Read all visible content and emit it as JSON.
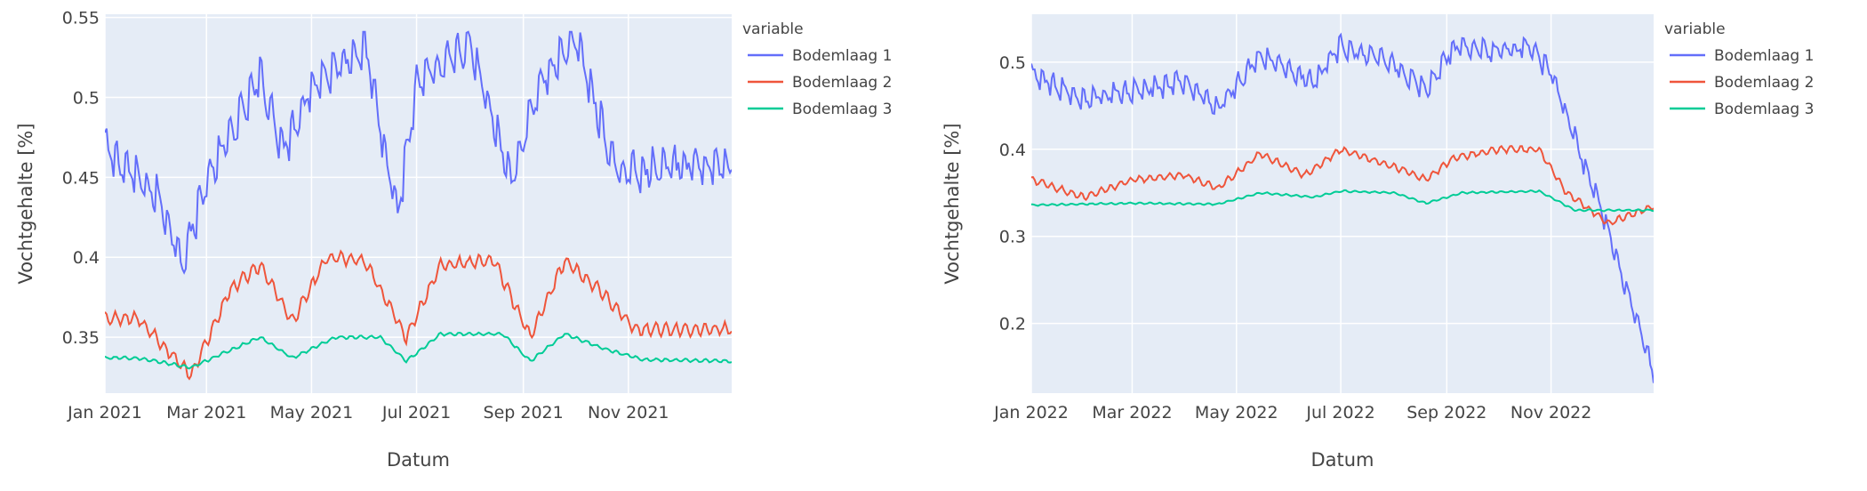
{
  "chart_data": [
    {
      "type": "line",
      "xlabel": "Datum",
      "ylabel": "Vochtgehalte [%]",
      "x_range": [
        "2021-01-01",
        "2021-12-31"
      ],
      "ylim": [
        0.315,
        0.552
      ],
      "x_ticks": [
        "Jan 2021",
        "Mar 2021",
        "May 2021",
        "Jul 2021",
        "Sep 2021",
        "Nov 2021"
      ],
      "y_ticks": [
        "0.35",
        "0.4",
        "0.45",
        "0.5",
        "0.55"
      ],
      "legend_title": "variable",
      "legend_position": "top-right",
      "series": [
        {
          "name": "Bodemlaag 1",
          "color": "#636efa",
          "x": [
            "2021-01-01",
            "2021-02-01",
            "2021-02-15",
            "2021-03-01",
            "2021-04-01",
            "2021-04-15",
            "2021-05-01",
            "2021-06-01",
            "2021-06-20",
            "2021-07-01",
            "2021-08-01",
            "2021-08-25",
            "2021-09-10",
            "2021-10-01",
            "2021-10-25",
            "2021-12-01",
            "2021-12-31"
          ],
          "y": [
            0.46,
            0.43,
            0.39,
            0.44,
            0.505,
            0.46,
            0.5,
            0.525,
            0.42,
            0.5,
            0.525,
            0.44,
            0.5,
            0.53,
            0.445,
            0.45,
            0.45
          ]
        },
        {
          "name": "Bodemlaag 2",
          "color": "#ef553b",
          "x": [
            "2021-01-01",
            "2021-01-20",
            "2021-02-20",
            "2021-03-15",
            "2021-04-01",
            "2021-04-20",
            "2021-05-10",
            "2021-06-01",
            "2021-06-25",
            "2021-07-15",
            "2021-08-15",
            "2021-09-05",
            "2021-09-25",
            "2021-10-15",
            "2021-11-05",
            "2021-12-31"
          ],
          "y": [
            0.362,
            0.362,
            0.326,
            0.38,
            0.395,
            0.36,
            0.4,
            0.398,
            0.35,
            0.395,
            0.398,
            0.35,
            0.398,
            0.38,
            0.355,
            0.355
          ]
        },
        {
          "name": "Bodemlaag 3",
          "color": "#00cc96",
          "x": [
            "2021-01-01",
            "2021-01-20",
            "2021-02-20",
            "2021-04-01",
            "2021-04-20",
            "2021-05-15",
            "2021-06-10",
            "2021-06-25",
            "2021-07-15",
            "2021-08-20",
            "2021-09-05",
            "2021-09-25",
            "2021-10-20",
            "2021-11-10",
            "2021-12-31"
          ],
          "y": [
            0.337,
            0.337,
            0.331,
            0.35,
            0.337,
            0.35,
            0.35,
            0.335,
            0.352,
            0.352,
            0.335,
            0.352,
            0.342,
            0.336,
            0.335
          ]
        }
      ]
    },
    {
      "type": "line",
      "xlabel": "Datum",
      "ylabel": "Vochtgehalte [%]",
      "x_range": [
        "2022-01-01",
        "2022-12-31"
      ],
      "ylim": [
        0.12,
        0.555
      ],
      "x_ticks": [
        "Jan 2022",
        "Mar 2022",
        "May 2022",
        "Jul 2022",
        "Sep 2022",
        "Nov 2022"
      ],
      "y_ticks": [
        "0.2",
        "0.3",
        "0.4",
        "0.5"
      ],
      "legend_title": "variable",
      "legend_position": "top-right",
      "series": [
        {
          "name": "Bodemlaag 1",
          "color": "#636efa",
          "x": [
            "2022-01-01",
            "2022-02-01",
            "2022-03-01",
            "2022-04-01",
            "2022-04-20",
            "2022-05-15",
            "2022-06-15",
            "2022-07-01",
            "2022-08-01",
            "2022-08-20",
            "2022-09-05",
            "2022-09-25",
            "2022-10-20",
            "2022-11-01",
            "2022-12-01",
            "2022-12-31"
          ],
          "y": [
            0.48,
            0.45,
            0.46,
            0.47,
            0.44,
            0.5,
            0.47,
            0.51,
            0.49,
            0.46,
            0.51,
            0.505,
            0.51,
            0.48,
            0.32,
            0.135
          ]
        },
        {
          "name": "Bodemlaag 2",
          "color": "#ef553b",
          "x": [
            "2022-01-01",
            "2022-02-01",
            "2022-03-01",
            "2022-04-01",
            "2022-04-20",
            "2022-05-15",
            "2022-06-10",
            "2022-07-01",
            "2022-08-01",
            "2022-08-20",
            "2022-09-05",
            "2022-10-01",
            "2022-10-25",
            "2022-11-10",
            "2022-12-05",
            "2022-12-31"
          ],
          "y": [
            0.365,
            0.345,
            0.365,
            0.37,
            0.355,
            0.395,
            0.37,
            0.4,
            0.38,
            0.365,
            0.39,
            0.4,
            0.4,
            0.35,
            0.315,
            0.335
          ]
        },
        {
          "name": "Bodemlaag 3",
          "color": "#00cc96",
          "x": [
            "2022-01-01",
            "2022-03-01",
            "2022-04-20",
            "2022-05-15",
            "2022-06-15",
            "2022-07-01",
            "2022-08-01",
            "2022-08-20",
            "2022-09-10",
            "2022-10-25",
            "2022-11-15",
            "2022-12-31"
          ],
          "y": [
            0.336,
            0.338,
            0.337,
            0.35,
            0.345,
            0.352,
            0.35,
            0.338,
            0.35,
            0.352,
            0.33,
            0.33
          ]
        }
      ]
    }
  ]
}
